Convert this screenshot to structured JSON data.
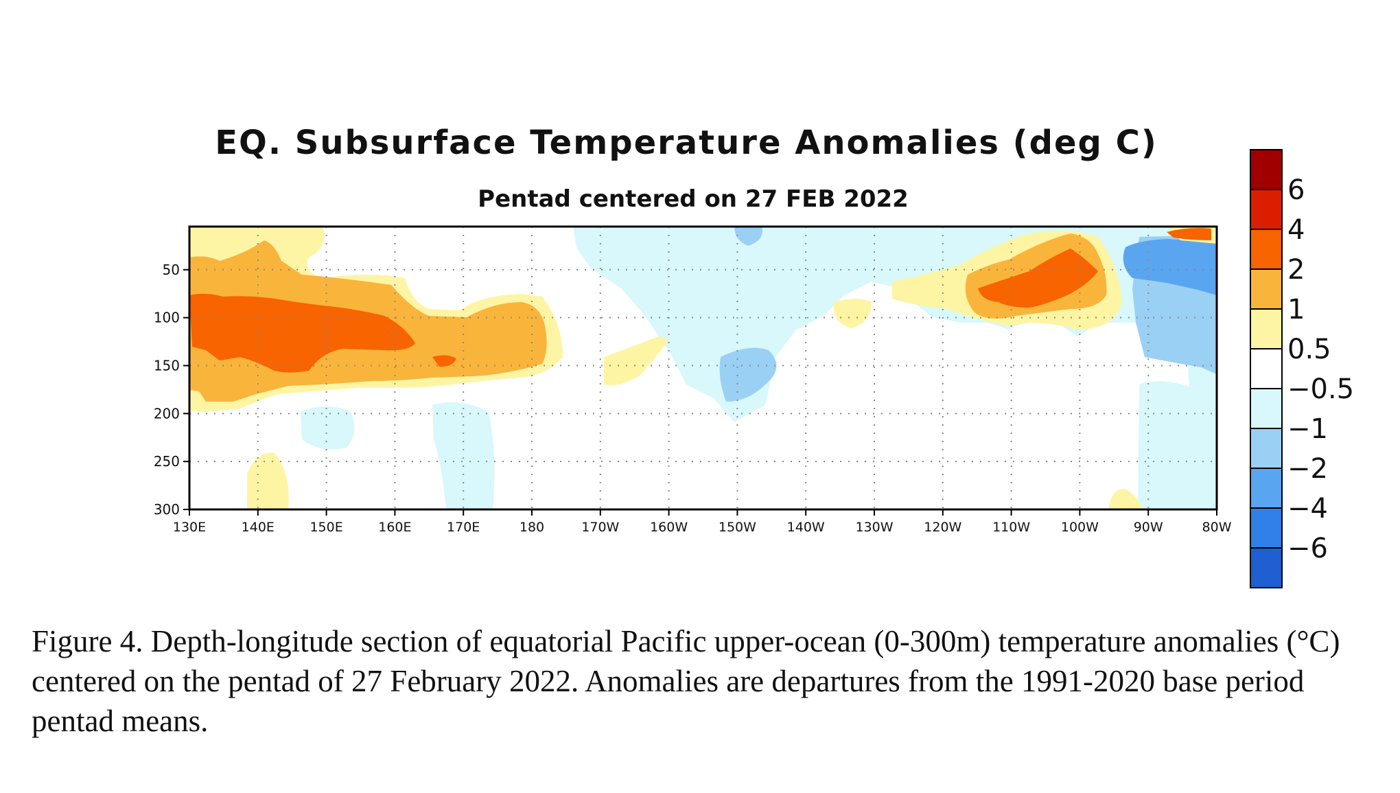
{
  "chart_data": {
    "type": "heatmap",
    "title": "EQ. Subsurface Temperature Anomalies (deg C)",
    "subtitle": "Pentad centered on 27 FEB 2022",
    "xlabel": "",
    "ylabel": "",
    "x_ticks": [
      "130E",
      "140E",
      "150E",
      "160E",
      "170E",
      "180",
      "170W",
      "160W",
      "150W",
      "140W",
      "130W",
      "120W",
      "110W",
      "100W",
      "90W",
      "80W"
    ],
    "y_ticks": [
      "50",
      "100",
      "150",
      "200",
      "250",
      "300"
    ],
    "x_range_deg_east": [
      130,
      280
    ],
    "y_range_depth_m": [
      5,
      300
    ],
    "y_inverted": true,
    "grid": "dotted",
    "colorbar": {
      "placement": "right",
      "labels": [
        "6",
        "4",
        "2",
        "1",
        "0.5",
        "−0.5",
        "−1",
        "−2",
        "−4",
        "−6"
      ],
      "colors": [
        "#a00000",
        "#dc1e00",
        "#f76400",
        "#f9b43c",
        "#fdf5a4",
        "#ffffff",
        "#d8f8fb",
        "#9bd0f5",
        "#5aa5f0",
        "#2f80e8",
        "#1f5fd2"
      ]
    },
    "features": [
      {
        "label": "warm west Pacific 130E-180",
        "depth_m": [
          40,
          180
        ],
        "peak_anomaly": 3
      },
      {
        "label": "warm east Pacific 120W-100W",
        "depth_m": [
          20,
          110
        ],
        "peak_anomaly": 3
      },
      {
        "label": "cool east Pacific 95W-80W",
        "depth_m": [
          10,
          150
        ],
        "peak_anomaly": -3
      },
      {
        "label": "cool central Pacific 150W-140W",
        "depth_m": [
          130,
          190
        ],
        "peak_anomaly": -1.5
      }
    ]
  },
  "caption": "Figure 4. Depth-longitude section of equatorial Pacific upper-ocean (0-300m) temperature anomalies (°C) centered on the pentad of 27 February 2022. Anomalies are departures from the 1991-2020 base period pentad means."
}
